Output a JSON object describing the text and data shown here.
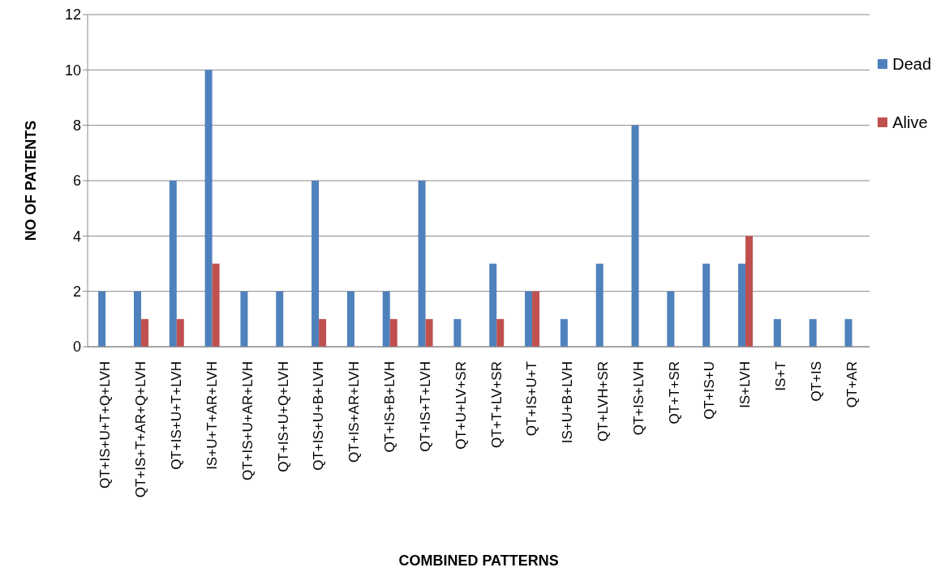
{
  "chart_data": {
    "type": "bar",
    "xlabel": "COMBINED PATTERNS",
    "ylabel": "NO OF PATIENTS",
    "categories": [
      "QT+IS+U+T+Q+LVH",
      "QT+IS+T+AR+Q+LVH",
      "QT+IS+U+T+LVH",
      "IS+U+T+AR+LVH",
      "QT+IS+U+AR+LVH",
      "QT+IS+U+Q+LVH",
      "QT+IS+U+B+LVH",
      "QT+IS+AR+LVH",
      "QT+IS+B+LVH",
      "QT+IS+T+LVH",
      "QT+U+LV+SR",
      "QT+T+LV+SR",
      "QT+IS+U+T",
      "IS+U+B+LVH",
      "QT+LVH+SR",
      "QT+IS+LVH",
      "QT+T+SR",
      "QT+IS+U",
      "IS+LVH",
      "IS+T",
      "QT+IS",
      "QT+AR"
    ],
    "series": [
      {
        "name": "Dead",
        "color": "#4f81bd",
        "values": [
          2,
          2,
          6,
          10,
          2,
          2,
          6,
          2,
          2,
          6,
          1,
          3,
          2,
          1,
          3,
          8,
          2,
          3,
          3,
          1,
          1,
          1
        ]
      },
      {
        "name": "Alive",
        "color": "#c0504d",
        "values": [
          0,
          1,
          1,
          3,
          0,
          0,
          1,
          0,
          1,
          1,
          0,
          1,
          2,
          0,
          0,
          0,
          0,
          0,
          4,
          0,
          0,
          0
        ]
      }
    ],
    "ylim": [
      0,
      12
    ],
    "yticks": [
      0,
      2,
      4,
      6,
      8,
      10,
      12
    ],
    "grid": "y",
    "legend": "right"
  }
}
